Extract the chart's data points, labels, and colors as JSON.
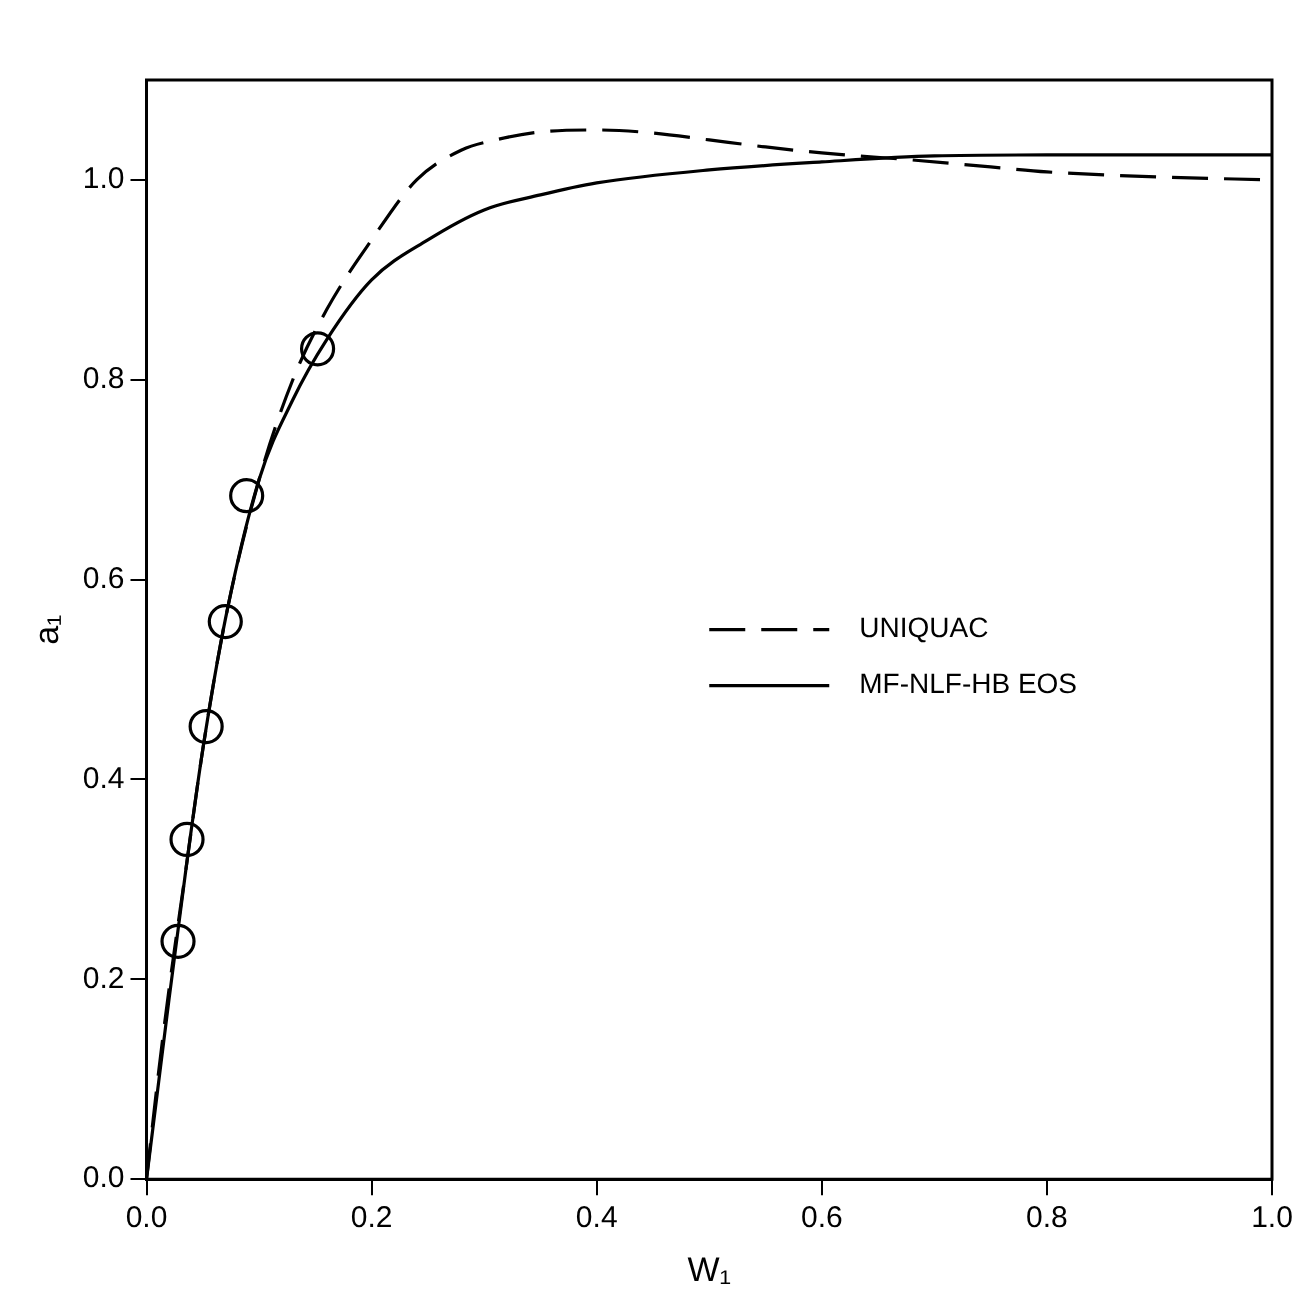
{
  "chart_data": {
    "type": "line",
    "xlabel": "W₁",
    "ylabel": "a₁",
    "xlim": [
      0,
      1
    ],
    "ylim": [
      0,
      1.1
    ],
    "xticks": [
      {
        "value": 0,
        "label": "0.0"
      },
      {
        "value": 0.2,
        "label": "0.2"
      },
      {
        "value": 0.4,
        "label": "0.4"
      },
      {
        "value": 0.6,
        "label": "0.6"
      },
      {
        "value": 0.8,
        "label": "0.8"
      },
      {
        "value": 1,
        "label": "1.0"
      }
    ],
    "yticks": [
      {
        "value": 0,
        "label": "0.0"
      },
      {
        "value": 0.2,
        "label": "0.2"
      },
      {
        "value": 0.4,
        "label": "0.4"
      },
      {
        "value": 0.6,
        "label": "0.6"
      },
      {
        "value": 0.8,
        "label": "0.8"
      },
      {
        "value": 1,
        "label": "1.0"
      }
    ],
    "grid": false,
    "legend": "right",
    "series": [
      {
        "name": "UNIQUAC",
        "type": "line",
        "line_style": "dashed",
        "color": "#000000",
        "x": [
          0,
          0.01,
          0.02,
          0.035,
          0.05,
          0.07,
          0.1,
          0.13,
          0.16,
          0.2,
          0.24,
          0.28,
          0.31,
          0.35,
          0.4,
          0.45,
          0.5,
          0.55,
          0.6,
          0.68,
          0.75,
          0.8,
          0.9,
          1.0
        ],
        "values": [
          0,
          0.1,
          0.19,
          0.31,
          0.43,
          0.56,
          0.7,
          0.8,
          0.87,
          0.94,
          1.0,
          1.03,
          1.04,
          1.048,
          1.05,
          1.047,
          1.04,
          1.033,
          1.027,
          1.02,
          1.013,
          1.008,
          1.003,
          1.0
        ]
      },
      {
        "name": "MF-NLF-HB EOS",
        "type": "line",
        "line_style": "solid",
        "color": "#000000",
        "x": [
          0,
          0.01,
          0.02,
          0.035,
          0.05,
          0.07,
          0.1,
          0.13,
          0.16,
          0.2,
          0.25,
          0.3,
          0.35,
          0.4,
          0.5,
          0.6,
          0.7,
          0.8,
          0.9,
          1.0
        ],
        "values": [
          0,
          0.09,
          0.18,
          0.31,
          0.43,
          0.56,
          0.7,
          0.78,
          0.84,
          0.9,
          0.94,
          0.97,
          0.985,
          0.997,
          1.01,
          1.018,
          1.024,
          1.025,
          1.025,
          1.025
        ]
      },
      {
        "type": "scatter",
        "marker": "circle",
        "color": "#000000",
        "x": [
          0.028,
          0.036,
          0.053,
          0.07,
          0.089,
          0.152
        ],
        "values": [
          0.238,
          0.34,
          0.453,
          0.558,
          0.684,
          0.831
        ]
      }
    ]
  }
}
